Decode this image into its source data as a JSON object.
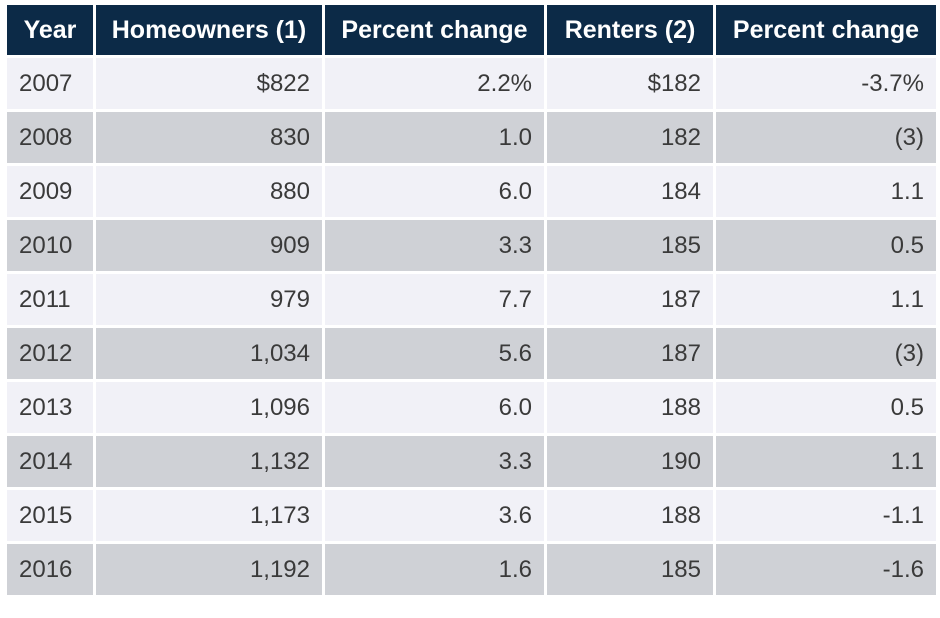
{
  "chart_data": {
    "type": "table",
    "columns": [
      "Year",
      "Homeowners (1)",
      "Percent change",
      "Renters (2)",
      "Percent change"
    ],
    "rows": [
      [
        "2007",
        "$822",
        "2.2%",
        "$182",
        "-3.7%"
      ],
      [
        "2008",
        "830",
        "1.0",
        "182",
        "(3)"
      ],
      [
        "2009",
        "880",
        "6.0",
        "184",
        "1.1"
      ],
      [
        "2010",
        "909",
        "3.3",
        "185",
        "0.5"
      ],
      [
        "2011",
        "979",
        "7.7",
        "187",
        "1.1"
      ],
      [
        "2012",
        "1,034",
        "5.6",
        "187",
        "(3)"
      ],
      [
        "2013",
        "1,096",
        "6.0",
        "188",
        "0.5"
      ],
      [
        "2014",
        "1,132",
        "3.3",
        "190",
        "1.1"
      ],
      [
        "2015",
        "1,173",
        "3.6",
        "188",
        "-1.1"
      ],
      [
        "2016",
        "1,192",
        "1.6",
        "185",
        "-1.6"
      ]
    ]
  },
  "colors": {
    "header_bg": "#0c2a47",
    "header_text": "#ffffff",
    "row_light": "#f1f1f7",
    "row_dark": "#cfd1d6",
    "cell_text": "#3a3a3a"
  }
}
